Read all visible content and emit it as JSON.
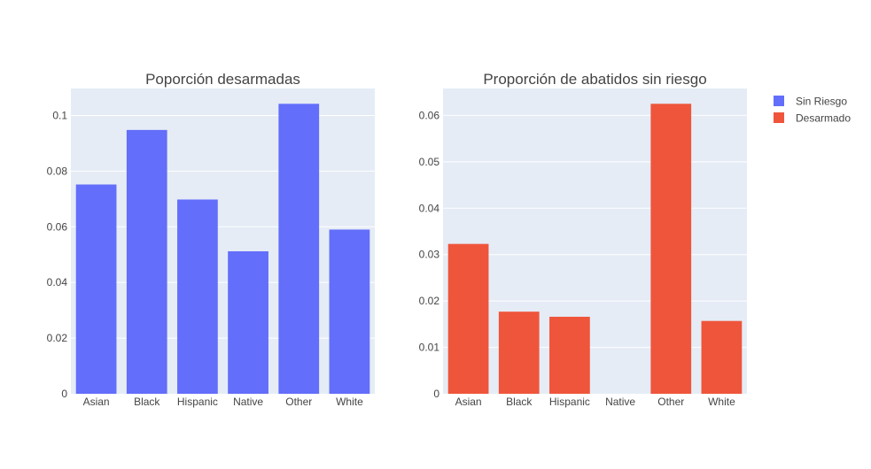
{
  "colors": {
    "plot_bg": "#E5ECF6",
    "grid": "#FFFFFF",
    "text": "#444444",
    "sin_riesgo": "#636EFA",
    "desarmado": "#EF553B"
  },
  "legend": {
    "items": [
      {
        "label": "Sin Riesgo",
        "color": "#636EFA"
      },
      {
        "label": "Desarmado",
        "color": "#EF553B"
      }
    ],
    "placement": "top-right"
  },
  "chart_data": [
    {
      "type": "bar",
      "title": "Poporción desarmadas",
      "categories": [
        "Asian",
        "Black",
        "Hispanic",
        "Native",
        "Other",
        "White"
      ],
      "series": [
        {
          "name": "Sin Riesgo",
          "values": [
            0.0752,
            0.0948,
            0.0698,
            0.0512,
            0.1042,
            0.059
          ],
          "color": "#636EFA"
        }
      ],
      "xlabel": "",
      "ylabel": "",
      "ylim": [
        0,
        0.1097
      ],
      "yticks": [
        0,
        0.02,
        0.04,
        0.06,
        0.08,
        0.1
      ],
      "ytick_labels": [
        "0",
        "0.02",
        "0.04",
        "0.06",
        "0.08",
        "0.1"
      ],
      "grid": true
    },
    {
      "type": "bar",
      "title": "Proporción de abatidos sin riesgo",
      "categories": [
        "Asian",
        "Black",
        "Hispanic",
        "Native",
        "Other",
        "White"
      ],
      "series": [
        {
          "name": "Desarmado",
          "values": [
            0.0323,
            0.0177,
            0.0166,
            0,
            0.0625,
            0.0157
          ],
          "color": "#EF553B"
        }
      ],
      "xlabel": "",
      "ylabel": "",
      "ylim": [
        0,
        0.0658
      ],
      "yticks": [
        0,
        0.01,
        0.02,
        0.03,
        0.04,
        0.05,
        0.06
      ],
      "ytick_labels": [
        "0",
        "0.01",
        "0.02",
        "0.03",
        "0.04",
        "0.05",
        "0.06"
      ],
      "grid": true
    }
  ]
}
